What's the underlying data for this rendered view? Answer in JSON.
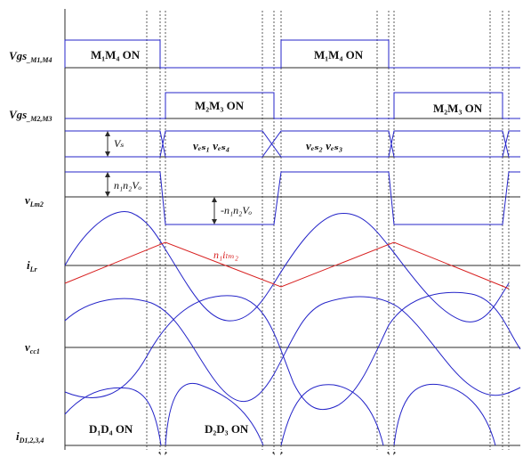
{
  "signals": {
    "vgs1": {
      "main": "Vgs",
      "sub": "_M1,M4"
    },
    "vgs2": {
      "main": "Vgs",
      "sub": "_M2,M3"
    },
    "vlm2": {
      "main": "v",
      "sub": "Lm2"
    },
    "ilr": {
      "main": "i",
      "sub": "Lr"
    },
    "vcc1": {
      "main": "v",
      "sub": "cc1"
    },
    "id": {
      "main": "i",
      "sub": "D1,2,3,4"
    }
  },
  "states": {
    "m1m4_a": "M₁M₄ ON",
    "m1m4_b": "M₁M₄ ON",
    "m2m3_a": "M₂M₃ ON",
    "m2m3_b": "M₂M₃ ON",
    "d1d4": "D₁D₄ ON",
    "d2d3": "D₂D₃ ON"
  },
  "annotations": {
    "vs": "Vₛ",
    "vds_a": "vₑₛ₁ vₑₛ₄",
    "vds_b": "vₑₛ₂ vₑₛ₃",
    "pos_v": "n₁n₂Vₒ",
    "neg_v": "-n₁n₂Vₒ",
    "ilm": "n₁iₗₘ₂"
  },
  "colors": {
    "waveform": "#2424c8",
    "current": "#d82020",
    "axis": "#2b2b2b"
  }
}
